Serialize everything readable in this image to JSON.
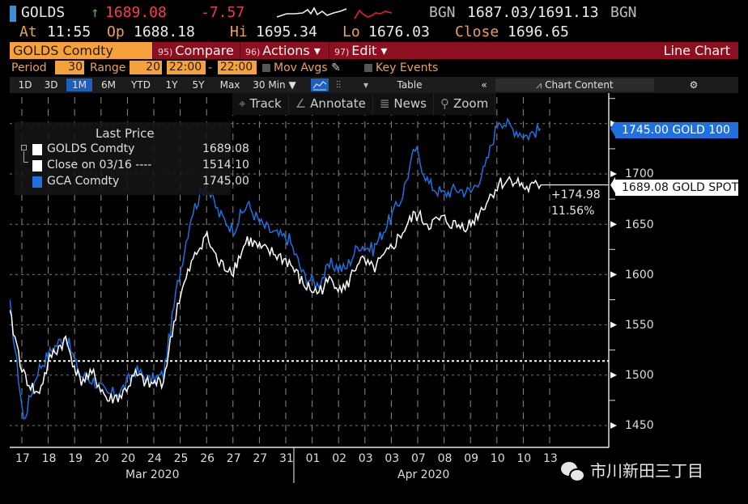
{
  "header": {
    "ticker": "GOLDS",
    "arrow": "↑",
    "last": "1689.08",
    "change": "-7.57",
    "bid_source": "BGN",
    "bid_ask": "1687.03/1691.13",
    "ask_source": "BGN",
    "at_label": "At",
    "at_time": "11:55",
    "open_label": "Op",
    "open": "1688.18",
    "high_label": "Hi",
    "high": "1695.34",
    "low_label": "Lo",
    "low": "1676.03",
    "close_label": "Close",
    "close": "1696.65"
  },
  "menu_bar": {
    "security": "GOLDS Comdty",
    "compare_num": "95)",
    "compare": "Compare",
    "actions_num": "96)",
    "actions": "Actions ▾",
    "edit_num": "97)",
    "edit": "Edit ▾",
    "chart_type": "Line Chart"
  },
  "settings_bar": {
    "period_label": "Period",
    "period": "30",
    "range_label": "Range",
    "range": "20",
    "time_from": "22:00",
    "dash": "-",
    "time_to": "22:00",
    "mov_avgs": "Mov Avgs",
    "key_events": "Key Events"
  },
  "range_bar": {
    "ranges": [
      "1D",
      "3D",
      "1M",
      "6M",
      "YTD",
      "1Y",
      "5Y",
      "Max"
    ],
    "active": "1M",
    "interval": "30 Min ▼",
    "table": "Table",
    "collapse": "«",
    "chart_content": "Chart Content",
    "settings": "⚙"
  },
  "tools": {
    "track": "Track",
    "annotate": "Annotate",
    "news": "News",
    "zoom": "Zoom"
  },
  "legend": {
    "title": "Last Price",
    "items": [
      {
        "name": "GOLDS Comdty",
        "value": "1689.08",
        "color": "#ffffff"
      },
      {
        "name": "Close on 03/16 ----",
        "value": "1514.10",
        "color": "#ffffff"
      },
      {
        "name": "GCA Comdty",
        "value": "1745.00",
        "color": "#1e6fe0"
      }
    ]
  },
  "tags": {
    "blue": "1745.00 GOLD 100",
    "white": "1689.08 GOLD SPOT",
    "change_abs": "+174.98",
    "change_pct": "11.56%"
  },
  "watermark": "市川新田三丁目",
  "chart_data": {
    "type": "line",
    "title": "Last Price",
    "xlabel": "",
    "ylabel": "",
    "ylim": [
      1425,
      1765
    ],
    "yticks": [
      1450,
      1500,
      1550,
      1600,
      1650,
      1700
    ],
    "x_tick_labels": [
      "17",
      "18",
      "19",
      "20",
      "20",
      "24",
      "25",
      "26",
      "27",
      "27",
      "31",
      "01",
      "02",
      "03",
      "03",
      "07",
      "08",
      "09",
      "10",
      "10",
      "13"
    ],
    "month_labels": [
      "Mar 2020",
      "Apr 2020"
    ],
    "grid": true,
    "legend_position": "top-left",
    "reference_line": {
      "name": "Close on 03/16",
      "value": 1514.1
    },
    "series": [
      {
        "name": "GOLDS Comdty",
        "color": "#ffffff",
        "x": [
          "03/16",
          "03/17",
          "03/17b",
          "03/18",
          "03/18b",
          "03/19",
          "03/19b",
          "03/20",
          "03/20b",
          "03/23",
          "03/23b",
          "03/24",
          "03/24b",
          "03/25",
          "03/25b",
          "03/26",
          "03/26b",
          "03/27",
          "03/27b",
          "03/30",
          "03/31",
          "04/01",
          "04/01b",
          "04/02",
          "04/02b",
          "04/03",
          "04/03b",
          "04/06",
          "04/07",
          "04/07b",
          "04/08",
          "04/08b",
          "04/09",
          "04/09b",
          "04/10",
          "04/10b",
          "04/13",
          "04/13b",
          "04/14"
        ],
        "values": [
          1560,
          1500,
          1480,
          1520,
          1535,
          1495,
          1500,
          1475,
          1480,
          1500,
          1490,
          1495,
          1570,
          1610,
          1640,
          1610,
          1605,
          1635,
          1625,
          1620,
          1612,
          1590,
          1582,
          1595,
          1585,
          1615,
          1605,
          1620,
          1640,
          1660,
          1650,
          1655,
          1648,
          1650,
          1670,
          1690,
          1695,
          1685,
          1689.08
        ]
      },
      {
        "name": "GCA Comdty",
        "color": "#1e6fe0",
        "x": [
          "03/16",
          "03/17",
          "03/17b",
          "03/18",
          "03/18b",
          "03/19",
          "03/19b",
          "03/20",
          "03/20b",
          "03/23",
          "03/23b",
          "03/24",
          "03/24b",
          "03/25",
          "03/25b",
          "03/26",
          "03/26b",
          "03/27",
          "03/27b",
          "03/30",
          "03/31",
          "04/01",
          "04/01b",
          "04/02",
          "04/02b",
          "04/03",
          "04/03b",
          "04/06",
          "04/07",
          "04/07b",
          "04/08",
          "04/08b",
          "04/09",
          "04/09b",
          "04/10",
          "04/10b",
          "04/13",
          "04/13b",
          "04/14"
        ],
        "values": [
          1570,
          1455,
          1505,
          1525,
          1540,
          1500,
          1495,
          1480,
          1485,
          1505,
          1495,
          1500,
          1590,
          1660,
          1690,
          1660,
          1645,
          1670,
          1650,
          1640,
          1635,
          1600,
          1590,
          1610,
          1605,
          1630,
          1625,
          1650,
          1675,
          1725,
          1690,
          1680,
          1685,
          1682,
          1705,
          1755,
          1745,
          1738,
          1745
        ]
      }
    ]
  }
}
